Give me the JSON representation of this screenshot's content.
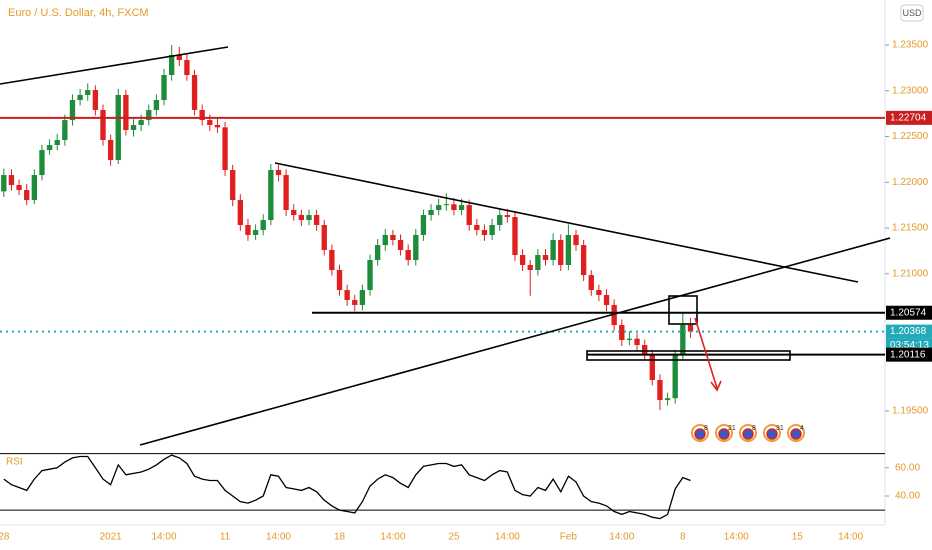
{
  "chart_data": {
    "type": "candlestick",
    "title": "Euro / U.S. Dollar, 4h, FXCM",
    "currency_button": "USD",
    "up_color": "#1e8c3a",
    "down_color": "#e0201f",
    "ylim": [
      1.19074,
      1.23992
    ],
    "yticks": [
      {
        "value": 1.235,
        "label": "1.23500"
      },
      {
        "value": 1.23,
        "label": "1.23000"
      },
      {
        "value": 1.225,
        "label": "1.22500"
      },
      {
        "value": 1.22,
        "label": "1.22000"
      },
      {
        "value": 1.215,
        "label": "1.21500"
      },
      {
        "value": 1.21,
        "label": "1.21000"
      },
      {
        "value": 1.195,
        "label": "1.19500"
      }
    ],
    "price_levels": [
      {
        "value": 1.22704,
        "color": "#c81e1e"
      },
      {
        "value": 1.20574,
        "color": "#000000"
      },
      {
        "value": 1.20368,
        "color": "#22aab8"
      },
      {
        "value": 1.20116,
        "color": "#000000"
      }
    ],
    "countdown": "03:54:13",
    "events": [
      "8",
      "21",
      "8",
      "31",
      "4"
    ],
    "categories": [
      "28",
      null,
      null,
      null,
      null,
      null,
      null,
      null,
      null,
      null,
      null,
      null,
      null,
      null,
      "2021",
      null,
      null,
      null,
      null,
      null,
      null,
      "14:00",
      null,
      null,
      null,
      null,
      null,
      null,
      null,
      "11",
      null,
      null,
      null,
      null,
      null,
      null,
      "14:00",
      null,
      null,
      null,
      null,
      null,
      null,
      null,
      "18",
      null,
      null,
      null,
      null,
      null,
      null,
      "14:00",
      null,
      null,
      null,
      null,
      null,
      null,
      null,
      "25",
      null,
      null,
      null,
      null,
      null,
      null,
      "14:00",
      null,
      null,
      null,
      null,
      null,
      null,
      null,
      "Feb",
      null,
      null,
      null,
      null,
      null,
      null,
      "14:00",
      null,
      null,
      null,
      null,
      null,
      null,
      null,
      "8",
      null,
      null,
      null,
      null,
      null,
      null,
      "14:00",
      null,
      null,
      null,
      null,
      null,
      null,
      null,
      "15",
      null,
      null,
      null,
      null,
      null,
      null,
      "14:00",
      null,
      null,
      null,
      null
    ],
    "ohlc": [
      [
        1.219,
        1.2215,
        1.2184,
        1.22079
      ],
      [
        1.22079,
        1.2214,
        1.2191,
        1.2197
      ],
      [
        1.2197,
        1.2203,
        1.2186,
        1.21915
      ],
      [
        1.21915,
        1.2198,
        1.2175,
        1.21806
      ],
      [
        1.21806,
        1.2214,
        1.2176,
        1.22079
      ],
      [
        1.22079,
        1.2241,
        1.2202,
        1.22352
      ],
      [
        1.22352,
        1.2247,
        1.223,
        1.22407
      ],
      [
        1.22407,
        1.2253,
        1.2235,
        1.22462
      ],
      [
        1.22462,
        1.2274,
        1.224,
        1.2268
      ],
      [
        1.2268,
        1.2296,
        1.2262,
        1.22899
      ],
      [
        1.22899,
        1.2302,
        1.2284,
        1.22954
      ],
      [
        1.22954,
        1.2308,
        1.2289,
        1.23008
      ],
      [
        1.23008,
        1.2306,
        1.2273,
        1.2279
      ],
      [
        1.2279,
        1.2285,
        1.224,
        1.22462
      ],
      [
        1.22462,
        1.2252,
        1.2218,
        1.22243
      ],
      [
        1.22243,
        1.2302,
        1.222,
        1.22954
      ],
      [
        1.22954,
        1.2301,
        1.2251,
        1.22571
      ],
      [
        1.22571,
        1.2269,
        1.225,
        1.22626
      ],
      [
        1.22626,
        1.2274,
        1.2256,
        1.2268
      ],
      [
        1.2268,
        1.2285,
        1.2262,
        1.2279
      ],
      [
        1.2279,
        1.2296,
        1.2273,
        1.22899
      ],
      [
        1.22899,
        1.2324,
        1.2284,
        1.23172
      ],
      [
        1.23172,
        1.235,
        1.2311,
        1.23391
      ],
      [
        1.23391,
        1.2348,
        1.2327,
        1.23336
      ],
      [
        1.23336,
        1.234,
        1.2311,
        1.23172
      ],
      [
        1.23172,
        1.2323,
        1.2273,
        1.2279
      ],
      [
        1.2279,
        1.2285,
        1.2262,
        1.2268
      ],
      [
        1.2268,
        1.2274,
        1.2256,
        1.22626
      ],
      [
        1.22626,
        1.227,
        1.2254,
        1.226
      ],
      [
        1.226,
        1.2266,
        1.2207,
        1.22134
      ],
      [
        1.22134,
        1.2219,
        1.2174,
        1.21806
      ],
      [
        1.21806,
        1.2187,
        1.2147,
        1.21533
      ],
      [
        1.21533,
        1.216,
        1.2136,
        1.21424
      ],
      [
        1.21424,
        1.2154,
        1.2137,
        1.21478
      ],
      [
        1.21478,
        1.2165,
        1.2142,
        1.21587
      ],
      [
        1.21587,
        1.222,
        1.2153,
        1.22134
      ],
      [
        1.22134,
        1.2219,
        1.2201,
        1.22079
      ],
      [
        1.22079,
        1.2214,
        1.2163,
        1.21697
      ],
      [
        1.21697,
        1.2176,
        1.2158,
        1.21642
      ],
      [
        1.21642,
        1.217,
        1.2152,
        1.21587
      ],
      [
        1.21587,
        1.217,
        1.2153,
        1.21642
      ],
      [
        1.21642,
        1.217,
        1.2147,
        1.21533
      ],
      [
        1.21533,
        1.2159,
        1.212,
        1.2126
      ],
      [
        1.2126,
        1.2132,
        1.2098,
        1.21041
      ],
      [
        1.21041,
        1.211,
        1.2076,
        1.20822
      ],
      [
        1.20822,
        1.2088,
        1.2065,
        1.20713
      ],
      [
        1.20713,
        1.2077,
        1.2059,
        1.20659
      ],
      [
        1.20659,
        1.2088,
        1.206,
        1.20822
      ],
      [
        1.20822,
        1.2121,
        1.2076,
        1.2115
      ],
      [
        1.2115,
        1.2138,
        1.2109,
        1.21314
      ],
      [
        1.21314,
        1.2149,
        1.2125,
        1.21424
      ],
      [
        1.21424,
        1.2148,
        1.2131,
        1.21369
      ],
      [
        1.21369,
        1.2143,
        1.212,
        1.2126
      ],
      [
        1.2126,
        1.2132,
        1.2109,
        1.2115
      ],
      [
        1.2115,
        1.2149,
        1.2109,
        1.21424
      ],
      [
        1.21424,
        1.217,
        1.2136,
        1.21642
      ],
      [
        1.21642,
        1.2176,
        1.2158,
        1.21697
      ],
      [
        1.21697,
        1.2182,
        1.2164,
        1.21751
      ],
      [
        1.21751,
        1.2188,
        1.2169,
        1.2176
      ],
      [
        1.2176,
        1.2183,
        1.2164,
        1.21697
      ],
      [
        1.21697,
        1.2182,
        1.2164,
        1.21751
      ],
      [
        1.21751,
        1.2181,
        1.2147,
        1.21533
      ],
      [
        1.21533,
        1.216,
        1.2142,
        1.21478
      ],
      [
        1.21478,
        1.2154,
        1.2136,
        1.21424
      ],
      [
        1.21424,
        1.216,
        1.2137,
        1.21533
      ],
      [
        1.21533,
        1.217,
        1.2147,
        1.21642
      ],
      [
        1.21642,
        1.2171,
        1.2156,
        1.2162
      ],
      [
        1.2162,
        1.2168,
        1.2114,
        1.21205
      ],
      [
        1.21205,
        1.2127,
        1.2103,
        1.21096
      ],
      [
        1.21096,
        1.2115,
        1.2076,
        1.21041
      ],
      [
        1.21041,
        1.2127,
        1.2098,
        1.21205
      ],
      [
        1.21205,
        1.2127,
        1.2109,
        1.2115
      ],
      [
        1.2115,
        1.2144,
        1.2109,
        1.21369
      ],
      [
        1.21369,
        1.2143,
        1.2103,
        1.21096
      ],
      [
        1.21096,
        1.2154,
        1.2104,
        1.21424
      ],
      [
        1.21424,
        1.2148,
        1.2125,
        1.21314
      ],
      [
        1.21314,
        1.2137,
        1.2092,
        1.20986
      ],
      [
        1.20986,
        1.2104,
        1.2076,
        1.20822
      ],
      [
        1.20822,
        1.2088,
        1.207,
        1.20768
      ],
      [
        1.20768,
        1.2083,
        1.2059,
        1.20659
      ],
      [
        1.20659,
        1.2072,
        1.2038,
        1.2044
      ],
      [
        1.2044,
        1.205,
        1.2021,
        1.20276
      ],
      [
        1.20276,
        1.2037,
        1.2022,
        1.2029
      ],
      [
        1.2029,
        1.2035,
        1.2016,
        1.20221
      ],
      [
        1.20221,
        1.2028,
        1.2005,
        1.20112
      ],
      [
        1.20112,
        1.2017,
        1.1978,
        1.19839
      ],
      [
        1.19839,
        1.199,
        1.1951,
        1.1962
      ],
      [
        1.1962,
        1.197,
        1.1956,
        1.1964
      ],
      [
        1.1964,
        1.2017,
        1.1958,
        1.20112
      ],
      [
        1.20112,
        1.20574,
        1.2005,
        1.2044
      ],
      [
        1.2044,
        1.2052,
        1.203,
        1.20368
      ],
      null,
      null,
      null,
      null,
      null,
      null,
      null,
      null,
      null,
      null,
      null,
      null,
      null,
      null,
      null,
      null,
      null,
      null,
      null,
      null,
      null,
      null,
      null,
      null,
      null
    ],
    "rsi": {
      "name": "RSI",
      "color": "#000000",
      "ylim": [
        23,
        74
      ],
      "yticks": [
        {
          "value": 60,
          "label": "60.00"
        },
        {
          "value": 40,
          "label": "40.00"
        }
      ],
      "levels": [
        70,
        30
      ],
      "values": [
        52,
        48,
        46,
        44,
        52,
        58,
        59,
        60,
        64,
        67,
        68,
        68,
        60,
        52,
        48,
        62,
        55,
        56,
        57,
        59,
        62,
        66,
        69,
        67,
        63,
        54,
        52,
        51,
        51,
        44,
        40,
        36,
        35,
        37,
        40,
        55,
        54,
        46,
        45,
        44,
        46,
        43,
        37,
        33,
        30,
        29,
        28,
        36,
        47,
        52,
        55,
        53,
        49,
        46,
        55,
        61,
        62,
        63,
        63,
        61,
        62,
        55,
        53,
        51,
        55,
        58,
        57,
        44,
        41,
        40,
        46,
        44,
        52,
        43,
        54,
        50,
        40,
        36,
        35,
        33,
        29,
        27,
        29,
        28,
        27,
        25,
        24,
        27,
        45,
        53,
        51,
        null,
        null,
        null,
        null,
        null,
        null,
        null,
        null,
        null,
        null,
        null,
        null,
        null,
        null,
        null,
        null,
        null,
        null,
        null,
        null,
        null,
        null,
        null,
        null,
        null
      ]
    }
  }
}
